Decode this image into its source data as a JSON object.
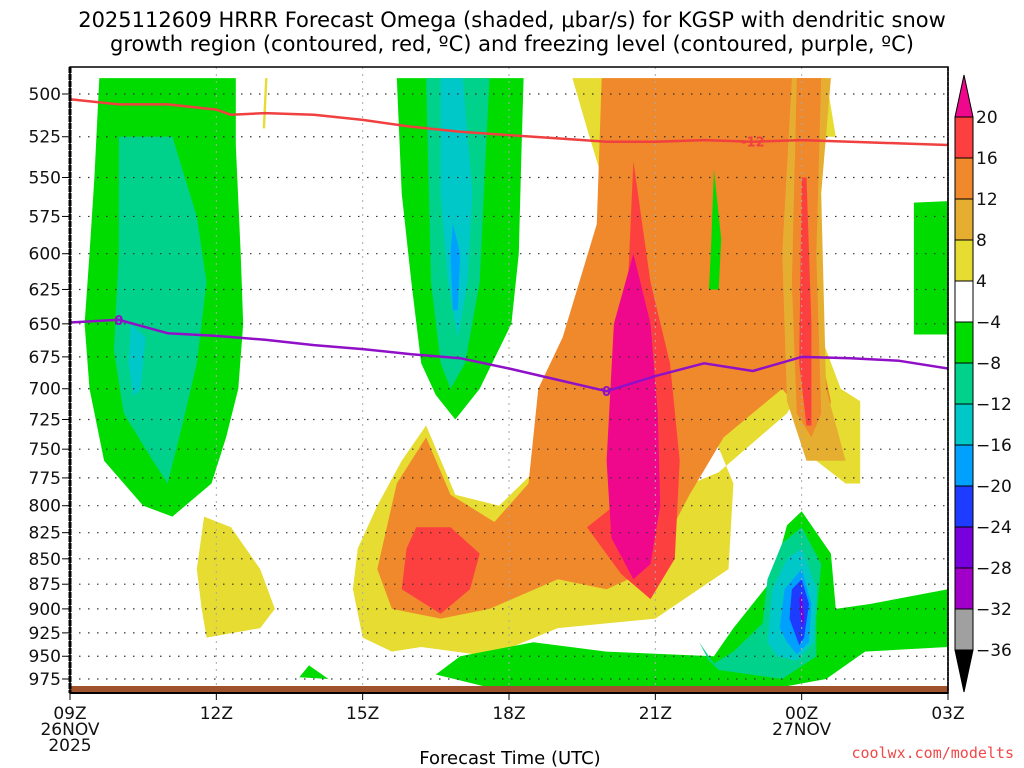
{
  "chart_data": {
    "type": "heatmap",
    "title_lines": [
      "2025112609 HRRR Forecast Omega (shaded, μbar/s) for KGSP with dendritic snow",
      "growth region (contoured, red, ºC) and freezing level (contoured, purple, ºC)"
    ],
    "xlabel": "Forecast Time (UTC)",
    "ylabel": "",
    "credit": "coolwx.com/modelts",
    "x_axis": {
      "range_hours": [
        0,
        18
      ],
      "ticks": [
        {
          "hour": 0,
          "lines": [
            "09Z",
            "26NOV",
            "2025"
          ]
        },
        {
          "hour": 3,
          "lines": [
            "12Z"
          ]
        },
        {
          "hour": 6,
          "lines": [
            "15Z"
          ]
        },
        {
          "hour": 9,
          "lines": [
            "18Z"
          ]
        },
        {
          "hour": 12,
          "lines": [
            "21Z"
          ]
        },
        {
          "hour": 15,
          "lines": [
            "00Z",
            "27NOV"
          ]
        },
        {
          "hour": 18,
          "lines": [
            "03Z"
          ]
        }
      ]
    },
    "y_axis": {
      "scale": "log-pressure",
      "range_hpa": [
        491,
        990
      ],
      "ticks": [
        500,
        525,
        550,
        575,
        600,
        625,
        650,
        675,
        700,
        725,
        750,
        775,
        800,
        825,
        850,
        875,
        900,
        925,
        950,
        975
      ]
    },
    "grid": true,
    "colorbar": {
      "placement": "right",
      "labels": [
        "20",
        "16",
        "12",
        "8",
        "4",
        "−4",
        "−8",
        "−12",
        "−16",
        "−20",
        "−24",
        "−28",
        "−32",
        "−36"
      ],
      "bins": [
        {
          "range": ">20",
          "color": "#f0088c"
        },
        {
          "range": "16 to 20",
          "color": "#fc4040"
        },
        {
          "range": "12 to 16",
          "color": "#f0882c"
        },
        {
          "range": "8 to 12",
          "color": "#e6ae30"
        },
        {
          "range": "4 to 8",
          "color": "#e6dc32"
        },
        {
          "range": "-4 to 4",
          "color": "#ffffff"
        },
        {
          "range": "-8 to -4",
          "color": "#00dc00"
        },
        {
          "range": "-12 to -8",
          "color": "#00d28c"
        },
        {
          "range": "-16 to -12",
          "color": "#00c8c8"
        },
        {
          "range": "-20 to -16",
          "color": "#00a0ff"
        },
        {
          "range": "-24 to -20",
          "color": "#1e3cff"
        },
        {
          "range": "-28 to -24",
          "color": "#7800dc"
        },
        {
          "range": "-32 to -28",
          "color": "#a000c8"
        },
        {
          "range": "-36 to -32",
          "color": "#a0a0a0"
        },
        {
          "range": "<-36",
          "color": "#000000"
        }
      ]
    },
    "contours": [
      {
        "name": "dendritic-growth-minus12",
        "label": "-12",
        "color": "#f04040",
        "label_at_hour": 14.0,
        "points": [
          [
            0,
            503
          ],
          [
            1,
            506
          ],
          [
            2,
            506
          ],
          [
            3,
            509
          ],
          [
            3.3,
            512
          ],
          [
            4,
            511
          ],
          [
            5,
            512
          ],
          [
            6,
            515
          ],
          [
            7,
            519
          ],
          [
            8,
            522
          ],
          [
            9,
            524
          ],
          [
            10,
            526
          ],
          [
            11,
            528
          ],
          [
            12,
            528
          ],
          [
            13,
            527
          ],
          [
            14,
            528
          ],
          [
            15,
            527
          ],
          [
            16,
            528
          ],
          [
            17,
            529
          ],
          [
            18,
            530
          ]
        ]
      },
      {
        "name": "freezing-level-0",
        "label": "0",
        "color": "#9010c8",
        "label_at_hour": 1.0,
        "label2_at_hour": 11.0,
        "points": [
          [
            0,
            649
          ],
          [
            1,
            647
          ],
          [
            2,
            657
          ],
          [
            3,
            659
          ],
          [
            4,
            662
          ],
          [
            5,
            666
          ],
          [
            6,
            669
          ],
          [
            7,
            673
          ],
          [
            8,
            676
          ],
          [
            9,
            684
          ],
          [
            10,
            693
          ],
          [
            11,
            702
          ],
          [
            12,
            690
          ],
          [
            13,
            680
          ],
          [
            14,
            686
          ],
          [
            15,
            675
          ],
          [
            16,
            676
          ],
          [
            17,
            678
          ],
          [
            18,
            684
          ]
        ]
      }
    ],
    "shaded_regions": [
      {
        "bin": "-8 to -4",
        "polygon": [
          [
            0.6,
            491
          ],
          [
            3.4,
            491
          ],
          [
            3.4,
            530
          ],
          [
            3.5,
            600
          ],
          [
            3.55,
            650
          ],
          [
            3.45,
            700
          ],
          [
            3.2,
            740
          ],
          [
            2.9,
            780
          ],
          [
            2.1,
            810
          ],
          [
            1.5,
            800
          ],
          [
            0.7,
            760
          ],
          [
            0.4,
            700
          ],
          [
            0.3,
            650
          ],
          [
            0.4,
            600
          ],
          [
            0.5,
            550
          ]
        ]
      },
      {
        "bin": "-12 to -8",
        "polygon": [
          [
            1.0,
            525
          ],
          [
            2.1,
            525
          ],
          [
            2.6,
            575
          ],
          [
            2.8,
            620
          ],
          [
            2.6,
            680
          ],
          [
            2.3,
            730
          ],
          [
            2.0,
            780
          ],
          [
            1.7,
            760
          ],
          [
            1.1,
            720
          ],
          [
            0.9,
            670
          ],
          [
            1.0,
            600
          ]
        ]
      },
      {
        "bin": "-16 to -12",
        "polygon": [
          [
            1.25,
            650
          ],
          [
            1.55,
            660
          ],
          [
            1.45,
            700
          ],
          [
            1.3,
            706
          ],
          [
            1.2,
            680
          ]
        ]
      },
      {
        "bin": "4 to 8",
        "polygon": [
          [
            4.0,
            491
          ],
          [
            4.05,
            491
          ],
          [
            4.0,
            520
          ],
          [
            3.95,
            520
          ]
        ]
      },
      {
        "bin": "-8 to -4",
        "polygon": [
          [
            6.7,
            491
          ],
          [
            9.3,
            491
          ],
          [
            9.25,
            540
          ],
          [
            9.2,
            600
          ],
          [
            9.05,
            650
          ],
          [
            8.4,
            700
          ],
          [
            7.9,
            725
          ],
          [
            7.5,
            705
          ],
          [
            7.2,
            680
          ],
          [
            7.0,
            620
          ],
          [
            6.8,
            560
          ]
        ]
      },
      {
        "bin": "-12 to -8",
        "polygon": [
          [
            7.3,
            491
          ],
          [
            8.6,
            491
          ],
          [
            8.5,
            550
          ],
          [
            8.4,
            620
          ],
          [
            8.1,
            680
          ],
          [
            7.8,
            700
          ],
          [
            7.6,
            680
          ],
          [
            7.4,
            620
          ]
        ]
      },
      {
        "bin": "-16 to -12",
        "polygon": [
          [
            7.6,
            491
          ],
          [
            8.05,
            491
          ],
          [
            8.25,
            560
          ],
          [
            8.15,
            620
          ],
          [
            7.95,
            660
          ],
          [
            7.75,
            620
          ],
          [
            7.6,
            560
          ]
        ]
      },
      {
        "bin": "-20 to -16",
        "polygon": [
          [
            7.85,
            580
          ],
          [
            8.0,
            600
          ],
          [
            7.95,
            640
          ],
          [
            7.85,
            640
          ],
          [
            7.8,
            600
          ]
        ]
      },
      {
        "bin": "4 to 8",
        "polygon": [
          [
            10.3,
            491
          ],
          [
            15.5,
            491
          ],
          [
            15.7,
            525
          ],
          [
            15.3,
            525
          ],
          [
            14.3,
            491
          ],
          [
            14.8,
            560
          ],
          [
            15.1,
            600
          ],
          [
            15.3,
            650
          ],
          [
            15.8,
            700
          ],
          [
            16.2,
            710
          ],
          [
            16.2,
            780
          ],
          [
            15.9,
            780
          ],
          [
            15.3,
            760
          ],
          [
            15.1,
            720
          ],
          [
            15.0,
            700
          ],
          [
            14.7,
            720
          ],
          [
            13.3,
            770
          ],
          [
            12.2,
            790
          ],
          [
            10.7,
            660
          ],
          [
            9.9,
            680
          ],
          [
            9.5,
            770
          ],
          [
            8.8,
            800
          ],
          [
            7.9,
            790
          ],
          [
            7.3,
            730
          ],
          [
            6.8,
            760
          ],
          [
            6.3,
            800
          ],
          [
            5.9,
            840
          ],
          [
            5.8,
            880
          ],
          [
            6.0,
            930
          ],
          [
            6.6,
            945
          ],
          [
            7.2,
            940
          ],
          [
            8.6,
            950
          ],
          [
            10.0,
            920
          ],
          [
            12.0,
            910
          ],
          [
            13.5,
            860
          ],
          [
            13.6,
            780
          ],
          [
            12.8,
            700
          ],
          [
            12.3,
            640
          ],
          [
            11.8,
            600
          ],
          [
            11.0,
            560
          ],
          [
            10.6,
            520
          ]
        ]
      },
      {
        "bin": "4 to 8",
        "polygon": [
          [
            2.75,
            810
          ],
          [
            3.3,
            820
          ],
          [
            3.9,
            860
          ],
          [
            4.2,
            900
          ],
          [
            3.9,
            920
          ],
          [
            2.8,
            930
          ],
          [
            2.7,
            900
          ],
          [
            2.6,
            860
          ]
        ]
      }
    ],
    "note": "Shaded omega field estimated from screenshot; polygons in data units (hours since 09Z, hPa)."
  }
}
